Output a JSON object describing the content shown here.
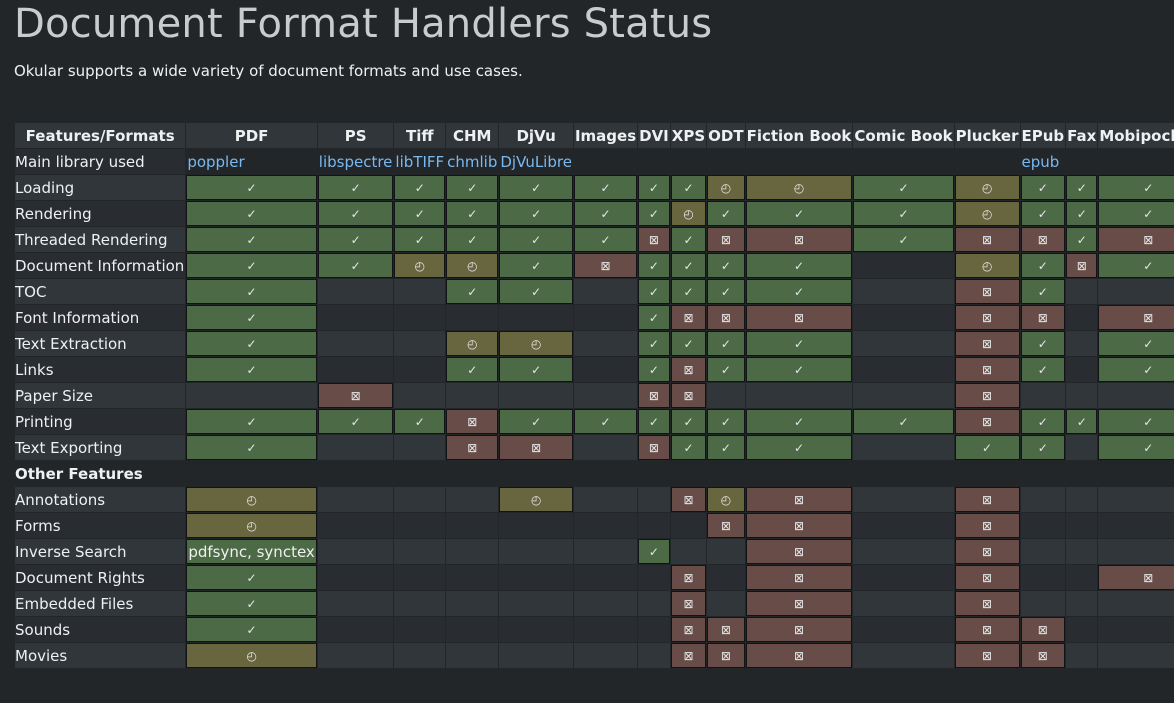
{
  "page": {
    "title": "Document Format Handlers Status",
    "subtitle": "Okular supports a wide variety of document formats and use cases."
  },
  "legend_colors": {
    "supported": "#4c6a45",
    "partial": "#68663f",
    "unsupported": "#684c48",
    "link": "#79b9f0"
  },
  "status_icons": {
    "supported": "check-icon",
    "partial": "partial-icon",
    "unsupported": "x-box-icon"
  },
  "header": [
    "Features/Formats",
    "PDF",
    "PS",
    "Tiff",
    "CHM",
    "DjVu",
    "Images",
    "DVI",
    "XPS",
    "ODT",
    "Fiction  Book",
    "Comic  Book",
    "Plucker",
    "EPub",
    "Fax",
    "Mobipocket"
  ],
  "library_row": {
    "label": "Main library used",
    "cells": [
      "poppler",
      "libspectre",
      "libTIFF",
      "chmlib",
      "DjVuLibre",
      "",
      "",
      "",
      "",
      "",
      "",
      "",
      "epub",
      "",
      ""
    ]
  },
  "rows": [
    {
      "label": "Loading",
      "cells": [
        "y",
        "y",
        "y",
        "y",
        "y",
        "y",
        "y",
        "y",
        "p",
        "p",
        "y",
        "p",
        "y",
        "y",
        "y"
      ]
    },
    {
      "label": "Rendering",
      "cells": [
        "y",
        "y",
        "y",
        "y",
        "y",
        "y",
        "y",
        "p",
        "y",
        "y",
        "y",
        "p",
        "y",
        "y",
        "y"
      ]
    },
    {
      "label": "Threaded Rendering",
      "cells": [
        "y",
        "y",
        "y",
        "y",
        "y",
        "y",
        "n",
        "y",
        "n",
        "n",
        "y",
        "n",
        "n",
        "y",
        "n"
      ]
    },
    {
      "label": "Document Information",
      "cells": [
        "y",
        "y",
        "p",
        "p",
        "y",
        "n",
        "y",
        "y",
        "y",
        "y",
        "",
        "p",
        "y",
        "n",
        "y"
      ]
    },
    {
      "label": "TOC",
      "cells": [
        "y",
        "",
        "",
        "y",
        "y",
        "",
        "y",
        "y",
        "y",
        "y",
        "",
        "n",
        "y",
        "",
        ""
      ]
    },
    {
      "label": "Font Information",
      "cells": [
        "y",
        "",
        "",
        "",
        "",
        "",
        "y",
        "n",
        "n",
        "n",
        "",
        "n",
        "n",
        "",
        "n"
      ]
    },
    {
      "label": "Text Extraction",
      "cells": [
        "y",
        "",
        "",
        "p",
        "p",
        "",
        "y",
        "y",
        "y",
        "y",
        "",
        "n",
        "y",
        "",
        "y"
      ]
    },
    {
      "label": "Links",
      "cells": [
        "y",
        "",
        "",
        "y",
        "y",
        "",
        "y",
        "n",
        "y",
        "y",
        "",
        "n",
        "y",
        "",
        "y"
      ]
    },
    {
      "label": "Paper Size",
      "cells": [
        "",
        "n",
        "",
        "",
        "",
        "",
        "n",
        "n",
        "",
        "",
        "",
        "n",
        "",
        "",
        ""
      ]
    },
    {
      "label": "Printing",
      "cells": [
        "y",
        "y",
        "y",
        "n",
        "y",
        "y",
        "y",
        "y",
        "y",
        "y",
        "y",
        "n",
        "y",
        "y",
        "y"
      ]
    },
    {
      "label": "Text Exporting",
      "cells": [
        "y",
        "",
        "",
        "n",
        "n",
        "",
        "n",
        "y",
        "y",
        "y",
        "",
        "y",
        "y",
        "",
        "y"
      ]
    }
  ],
  "other_section": "Other Features",
  "other_rows": [
    {
      "label": "Annotations",
      "cells": [
        "p",
        "",
        "",
        "",
        "p",
        "",
        "",
        "n",
        "p",
        "n",
        "",
        "n",
        "",
        "",
        ""
      ]
    },
    {
      "label": "Forms",
      "cells": [
        "p",
        "",
        "",
        "",
        "",
        "",
        "",
        "",
        "n",
        "n",
        "",
        "n",
        "",
        "",
        ""
      ]
    },
    {
      "label": "Inverse Search",
      "cells": [
        "t",
        "",
        "",
        "",
        "",
        "",
        "y",
        "",
        "",
        "n",
        "",
        "n",
        "",
        "",
        ""
      ]
    },
    {
      "label": "Document Rights",
      "cells": [
        "y",
        "",
        "",
        "",
        "",
        "",
        "",
        "n",
        "",
        "n",
        "",
        "n",
        "",
        "",
        "n"
      ]
    },
    {
      "label": "Embedded Files",
      "cells": [
        "y",
        "",
        "",
        "",
        "",
        "",
        "",
        "n",
        "",
        "n",
        "",
        "n",
        "",
        "",
        ""
      ]
    },
    {
      "label": "Sounds",
      "cells": [
        "y",
        "",
        "",
        "",
        "",
        "",
        "",
        "n",
        "n",
        "n",
        "",
        "n",
        "n",
        "",
        ""
      ]
    },
    {
      "label": "Movies",
      "cells": [
        "p",
        "",
        "",
        "",
        "",
        "",
        "",
        "n",
        "n",
        "n",
        "",
        "n",
        "n",
        "",
        ""
      ]
    }
  ],
  "inverse_search_text": "pdfsync, synctex"
}
